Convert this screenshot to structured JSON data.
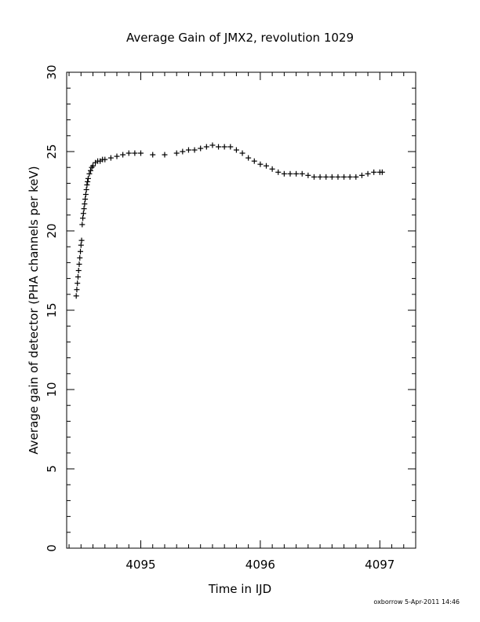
{
  "chart_data": {
    "type": "scatter",
    "title": "Average Gain of JMX2, revolution 1029",
    "xlabel": "Time in IJD",
    "ylabel": "Average gain of detector (PHA channels per keV)",
    "xlim": [
      4094.38,
      4097.3
    ],
    "ylim": [
      0,
      30
    ],
    "x_ticks": [
      4095,
      4096,
      4097
    ],
    "x_tick_labels": [
      "4095",
      "4096",
      "4097"
    ],
    "y_ticks": [
      0,
      5,
      10,
      15,
      20,
      25,
      30
    ],
    "y_tick_labels": [
      "0",
      "5",
      "10",
      "15",
      "20",
      "25",
      "30"
    ],
    "marker": "plus",
    "grid": false,
    "series": [
      {
        "color": "#000000",
        "x": [
          4094.46,
          4094.465,
          4094.47,
          4094.475,
          4094.48,
          4094.485,
          4094.49,
          4094.495,
          4094.5,
          4094.505,
          4094.51,
          4094.515,
          4094.52,
          4094.525,
          4094.53,
          4094.535,
          4094.54,
          4094.545,
          4094.55,
          4094.555,
          4094.56,
          4094.57,
          4094.58,
          4094.59,
          4094.6,
          4094.62,
          4094.64,
          4094.66,
          4094.68,
          4094.7,
          4094.75,
          4094.8,
          4094.85,
          4094.9,
          4094.95,
          4095.0,
          4095.1,
          4095.2,
          4095.3,
          4095.35,
          4095.4,
          4095.45,
          4095.5,
          4095.55,
          4095.6,
          4095.65,
          4095.7,
          4095.75,
          4095.8,
          4095.85,
          4095.9,
          4095.95,
          4096.0,
          4096.05,
          4096.1,
          4096.15,
          4096.2,
          4096.25,
          4096.3,
          4096.35,
          4096.4,
          4096.45,
          4096.5,
          4096.55,
          4096.6,
          4096.65,
          4096.7,
          4096.75,
          4096.8,
          4096.85,
          4096.9,
          4096.95,
          4097.0,
          4097.02
        ],
        "y": [
          15.9,
          16.3,
          16.7,
          17.1,
          17.5,
          17.9,
          18.3,
          18.7,
          19.1,
          19.4,
          20.4,
          20.8,
          21.1,
          21.4,
          21.7,
          22.0,
          22.3,
          22.6,
          22.9,
          23.1,
          23.3,
          23.6,
          23.8,
          24.0,
          24.1,
          24.3,
          24.4,
          24.4,
          24.5,
          24.5,
          24.6,
          24.7,
          24.8,
          24.9,
          24.9,
          24.9,
          24.8,
          24.8,
          24.9,
          25.0,
          25.1,
          25.1,
          25.2,
          25.3,
          25.4,
          25.3,
          25.3,
          25.3,
          25.1,
          24.9,
          24.6,
          24.4,
          24.2,
          24.1,
          23.9,
          23.7,
          23.6,
          23.6,
          23.6,
          23.6,
          23.5,
          23.4,
          23.4,
          23.4,
          23.4,
          23.4,
          23.4,
          23.4,
          23.4,
          23.5,
          23.6,
          23.7,
          23.7,
          23.7
        ]
      }
    ]
  },
  "footer": {
    "stamp": "oxborrow   5-Apr-2011 14:46"
  }
}
